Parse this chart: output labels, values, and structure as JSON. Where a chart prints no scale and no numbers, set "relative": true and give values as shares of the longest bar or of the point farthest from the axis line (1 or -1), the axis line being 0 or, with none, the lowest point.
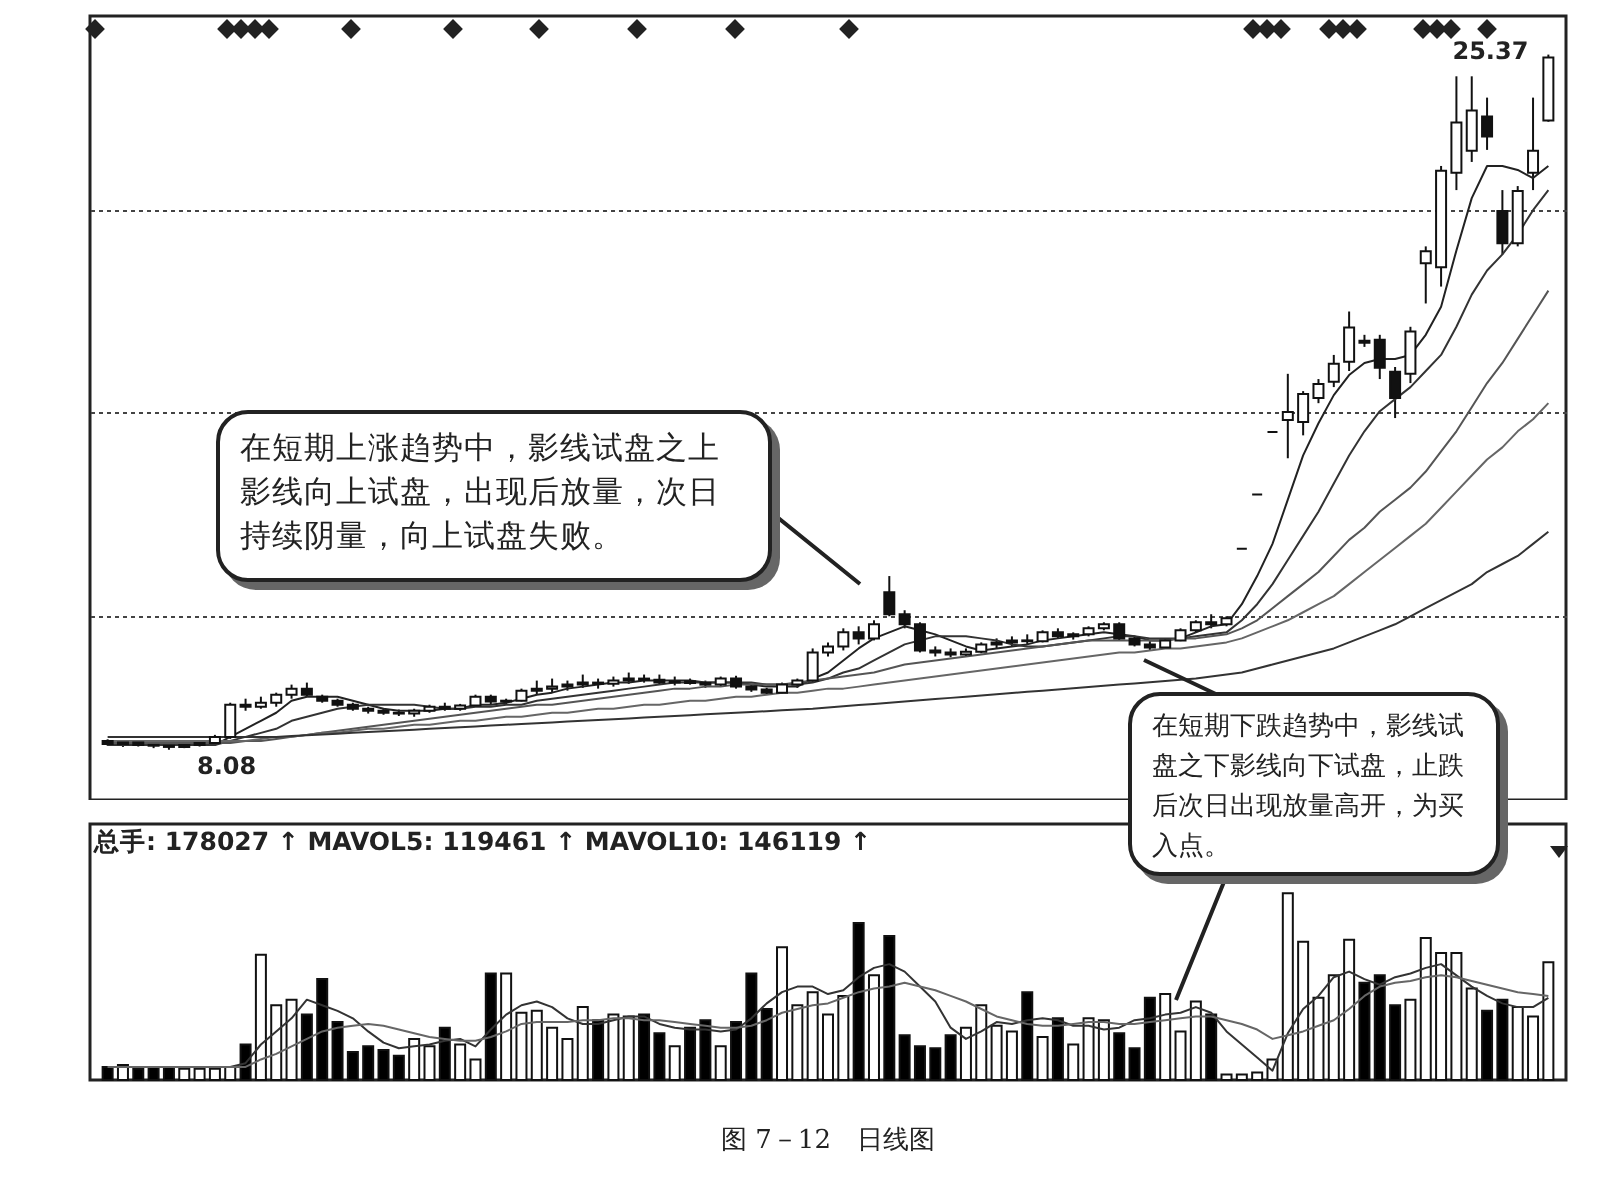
{
  "chart_data": [
    {
      "type": "candlestick",
      "categories": [
        null,
        null,
        null,
        null,
        null,
        null,
        null,
        null,
        null,
        null,
        null,
        null,
        null,
        null,
        null,
        null,
        null,
        null,
        null,
        null,
        null,
        null,
        null,
        null,
        null,
        null,
        null,
        null,
        null,
        null,
        null,
        null,
        null,
        null,
        null,
        null,
        null,
        null,
        null,
        null,
        null,
        null,
        null,
        null,
        null,
        null,
        null,
        null,
        null,
        null,
        null,
        null,
        null,
        null,
        null,
        null,
        null,
        null,
        null,
        null,
        null,
        null,
        null,
        null,
        null,
        null,
        null,
        null,
        null,
        null,
        null,
        null,
        null,
        null,
        null,
        null,
        null,
        null,
        null,
        null,
        null,
        null,
        null,
        null,
        null,
        null,
        null,
        null,
        null,
        null,
        null,
        null,
        null,
        null,
        null
      ],
      "ohlc": [
        [
          8.3,
          8.34,
          8.18,
          8.22
        ],
        [
          8.22,
          8.3,
          8.15,
          8.26
        ],
        [
          8.26,
          8.28,
          8.16,
          8.2
        ],
        [
          8.2,
          8.25,
          8.12,
          8.18
        ],
        [
          8.18,
          8.22,
          8.08,
          8.15
        ],
        [
          8.15,
          8.24,
          8.12,
          8.2
        ],
        [
          8.2,
          8.3,
          8.16,
          8.25
        ],
        [
          8.25,
          8.45,
          8.2,
          8.4
        ],
        [
          8.4,
          9.25,
          8.35,
          9.2
        ],
        [
          9.2,
          9.35,
          9.05,
          9.15
        ],
        [
          9.15,
          9.4,
          9.1,
          9.25
        ],
        [
          9.25,
          9.5,
          9.15,
          9.45
        ],
        [
          9.45,
          9.7,
          9.35,
          9.6
        ],
        [
          9.6,
          9.75,
          9.4,
          9.45
        ],
        [
          9.4,
          9.45,
          9.25,
          9.3
        ],
        [
          9.3,
          9.35,
          9.15,
          9.2
        ],
        [
          9.2,
          9.25,
          9.05,
          9.1
        ],
        [
          9.1,
          9.15,
          8.98,
          9.05
        ],
        [
          9.05,
          9.12,
          8.95,
          9.0
        ],
        [
          9.0,
          9.08,
          8.92,
          8.98
        ],
        [
          8.98,
          9.1,
          8.9,
          9.05
        ],
        [
          9.05,
          9.2,
          9.0,
          9.15
        ],
        [
          9.15,
          9.25,
          9.05,
          9.1
        ],
        [
          9.1,
          9.22,
          9.05,
          9.18
        ],
        [
          9.18,
          9.45,
          9.15,
          9.4
        ],
        [
          9.4,
          9.45,
          9.2,
          9.28
        ],
        [
          9.28,
          9.35,
          9.2,
          9.3
        ],
        [
          9.3,
          9.6,
          9.28,
          9.55
        ],
        [
          9.55,
          9.8,
          9.45,
          9.6
        ],
        [
          9.6,
          9.85,
          9.5,
          9.65
        ],
        [
          9.65,
          9.8,
          9.55,
          9.7
        ],
        [
          9.7,
          9.95,
          9.62,
          9.75
        ],
        [
          9.75,
          9.85,
          9.6,
          9.72
        ],
        [
          9.72,
          9.9,
          9.65,
          9.8
        ],
        [
          9.8,
          10.0,
          9.72,
          9.85
        ],
        [
          9.85,
          9.95,
          9.75,
          9.82
        ],
        [
          9.82,
          9.95,
          9.7,
          9.75
        ],
        [
          9.75,
          9.9,
          9.68,
          9.78
        ],
        [
          9.78,
          9.85,
          9.7,
          9.74
        ],
        [
          9.74,
          9.8,
          9.62,
          9.7
        ],
        [
          9.7,
          9.9,
          9.65,
          9.85
        ],
        [
          9.85,
          9.92,
          9.6,
          9.65
        ],
        [
          9.65,
          9.7,
          9.52,
          9.58
        ],
        [
          9.58,
          9.62,
          9.45,
          9.5
        ],
        [
          9.5,
          9.75,
          9.48,
          9.7
        ],
        [
          9.7,
          9.85,
          9.62,
          9.8
        ],
        [
          9.8,
          10.6,
          9.75,
          10.5
        ],
        [
          10.5,
          10.75,
          10.4,
          10.65
        ],
        [
          10.65,
          11.1,
          10.55,
          11.0
        ],
        [
          11.0,
          11.15,
          10.7,
          10.85
        ],
        [
          10.85,
          11.3,
          10.8,
          11.2
        ],
        [
          12.0,
          12.4,
          11.4,
          11.45
        ],
        [
          11.45,
          11.55,
          11.1,
          11.2
        ],
        [
          11.2,
          11.25,
          10.5,
          10.55
        ],
        [
          10.55,
          10.65,
          10.4,
          10.5
        ],
        [
          10.5,
          10.6,
          10.38,
          10.45
        ],
        [
          10.45,
          10.6,
          10.4,
          10.52
        ],
        [
          10.52,
          10.75,
          10.48,
          10.7
        ],
        [
          10.7,
          10.85,
          10.6,
          10.75
        ],
        [
          10.75,
          10.9,
          10.65,
          10.8
        ],
        [
          10.8,
          10.95,
          10.7,
          10.78
        ],
        [
          10.78,
          11.05,
          10.75,
          11.0
        ],
        [
          11.0,
          11.1,
          10.85,
          10.9
        ],
        [
          10.9,
          11.0,
          10.82,
          10.95
        ],
        [
          10.95,
          11.15,
          10.9,
          11.1
        ],
        [
          11.1,
          11.25,
          11.05,
          11.2
        ],
        [
          11.2,
          11.25,
          10.8,
          10.85
        ],
        [
          10.85,
          10.9,
          10.65,
          10.7
        ],
        [
          10.7,
          10.78,
          10.55,
          10.62
        ],
        [
          10.62,
          10.85,
          10.6,
          10.8
        ],
        [
          10.8,
          11.1,
          10.78,
          11.05
        ],
        [
          11.05,
          11.3,
          11.0,
          11.25
        ],
        [
          11.25,
          11.45,
          11.1,
          11.2
        ],
        [
          11.2,
          11.4,
          11.15,
          11.35
        ],
        [
          13.08,
          13.08,
          13.08,
          13.08
        ],
        [
          14.43,
          14.43,
          14.43,
          14.43
        ],
        [
          15.98,
          15.98,
          15.98,
          15.98
        ],
        [
          16.28,
          17.43,
          15.33,
          16.48
        ],
        [
          16.23,
          17.0,
          15.9,
          16.93
        ],
        [
          16.83,
          17.3,
          16.7,
          17.18
        ],
        [
          17.23,
          17.9,
          17.1,
          17.68
        ],
        [
          17.73,
          18.98,
          17.5,
          18.58
        ],
        [
          18.25,
          18.4,
          18.1,
          18.2
        ],
        [
          18.28,
          18.4,
          17.3,
          17.58
        ],
        [
          17.48,
          17.6,
          16.33,
          16.83
        ],
        [
          17.43,
          18.6,
          17.2,
          18.48
        ],
        [
          20.18,
          20.6,
          19.18,
          20.48
        ],
        [
          20.08,
          22.6,
          19.6,
          22.48
        ],
        [
          22.43,
          24.83,
          22.0,
          23.68
        ],
        [
          22.98,
          24.83,
          22.7,
          23.98
        ],
        [
          23.83,
          24.3,
          23.0,
          23.33
        ],
        [
          21.48,
          22.0,
          20.4,
          20.68
        ],
        [
          20.68,
          22.1,
          20.6,
          21.98
        ],
        [
          22.43,
          24.3,
          22.0,
          22.98
        ],
        [
          23.73,
          25.37,
          23.7,
          25.3
        ]
      ],
      "series": [
        {
          "type": "line",
          "color": "#222222",
          "values": [
            8.2,
            8.2,
            8.2,
            8.2,
            8.2,
            8.2,
            8.2,
            8.2,
            8.4,
            8.6,
            8.8,
            9.0,
            9.3,
            9.4,
            9.4,
            9.4,
            9.3,
            9.2,
            9.1,
            9.05,
            9.05,
            9.05,
            9.1,
            9.1,
            9.2,
            9.2,
            9.25,
            9.35,
            9.45,
            9.5,
            9.6,
            9.65,
            9.7,
            9.75,
            9.75,
            9.8,
            9.8,
            9.8,
            9.8,
            9.75,
            9.75,
            9.75,
            9.7,
            9.65,
            9.65,
            9.65,
            9.85,
            10.0,
            10.3,
            10.6,
            10.85,
            11.0,
            11.15,
            11.05,
            10.95,
            10.8,
            10.65,
            10.55,
            10.6,
            10.65,
            10.7,
            10.8,
            10.85,
            10.9,
            10.95,
            11.0,
            10.95,
            10.9,
            10.8,
            10.8,
            10.85,
            11.0,
            11.15,
            11.2,
            11.7,
            12.4,
            13.2,
            14.3,
            15.4,
            16.2,
            16.9,
            17.4,
            17.7,
            17.8,
            17.8,
            17.9,
            18.4,
            19.1,
            20.5,
            21.8,
            22.6,
            22.6,
            22.5,
            22.3,
            22.6
          ]
        },
        {
          "type": "line",
          "color": "#333333",
          "values": [
            8.2,
            8.2,
            8.2,
            8.2,
            8.2,
            8.2,
            8.2,
            8.2,
            8.3,
            8.4,
            8.5,
            8.6,
            8.8,
            8.9,
            9.0,
            9.1,
            9.15,
            9.2,
            9.2,
            9.2,
            9.2,
            9.15,
            9.1,
            9.1,
            9.15,
            9.15,
            9.2,
            9.2,
            9.3,
            9.35,
            9.4,
            9.45,
            9.5,
            9.55,
            9.6,
            9.65,
            9.7,
            9.75,
            9.75,
            9.75,
            9.75,
            9.75,
            9.75,
            9.7,
            9.7,
            9.7,
            9.75,
            9.85,
            10.0,
            10.1,
            10.3,
            10.5,
            10.7,
            10.8,
            10.9,
            10.9,
            10.9,
            10.85,
            10.8,
            10.7,
            10.65,
            10.65,
            10.7,
            10.75,
            10.8,
            10.85,
            10.9,
            10.9,
            10.85,
            10.85,
            10.85,
            10.9,
            10.95,
            11.0,
            11.3,
            11.7,
            12.2,
            12.8,
            13.4,
            14.0,
            14.7,
            15.4,
            16.0,
            16.5,
            16.8,
            17.1,
            17.5,
            17.9,
            18.6,
            19.4,
            20.0,
            20.4,
            20.9,
            21.5,
            22.0
          ]
        },
        {
          "type": "line",
          "color": "#555555",
          "values": [
            8.25,
            8.25,
            8.25,
            8.25,
            8.25,
            8.25,
            8.25,
            8.25,
            8.25,
            8.3,
            8.3,
            8.35,
            8.4,
            8.45,
            8.5,
            8.55,
            8.6,
            8.65,
            8.7,
            8.75,
            8.8,
            8.85,
            8.9,
            8.95,
            9.0,
            9.05,
            9.1,
            9.15,
            9.2,
            9.2,
            9.25,
            9.3,
            9.35,
            9.4,
            9.45,
            9.5,
            9.55,
            9.6,
            9.6,
            9.65,
            9.65,
            9.7,
            9.7,
            9.7,
            9.7,
            9.75,
            9.8,
            9.85,
            9.9,
            9.95,
            10.0,
            10.1,
            10.2,
            10.25,
            10.3,
            10.35,
            10.4,
            10.45,
            10.5,
            10.55,
            10.6,
            10.65,
            10.7,
            10.75,
            10.8,
            10.8,
            10.8,
            10.8,
            10.8,
            10.8,
            10.85,
            10.85,
            10.9,
            10.95,
            11.1,
            11.3,
            11.6,
            11.9,
            12.2,
            12.5,
            12.9,
            13.3,
            13.6,
            14.0,
            14.3,
            14.6,
            15.0,
            15.5,
            16.0,
            16.6,
            17.2,
            17.7,
            18.3,
            18.9,
            19.5
          ]
        },
        {
          "type": "line",
          "color": "#666666",
          "values": [
            8.3,
            8.3,
            8.3,
            8.3,
            8.3,
            8.3,
            8.3,
            8.3,
            8.3,
            8.3,
            8.35,
            8.4,
            8.4,
            8.45,
            8.5,
            8.5,
            8.55,
            8.6,
            8.6,
            8.65,
            8.7,
            8.7,
            8.75,
            8.8,
            8.8,
            8.85,
            8.9,
            8.9,
            8.95,
            9.0,
            9.0,
            9.05,
            9.1,
            9.1,
            9.15,
            9.2,
            9.2,
            9.25,
            9.3,
            9.3,
            9.35,
            9.4,
            9.4,
            9.45,
            9.5,
            9.5,
            9.55,
            9.6,
            9.6,
            9.65,
            9.7,
            9.75,
            9.8,
            9.85,
            9.9,
            9.95,
            10.0,
            10.05,
            10.1,
            10.15,
            10.2,
            10.25,
            10.3,
            10.35,
            10.4,
            10.45,
            10.5,
            10.5,
            10.55,
            10.6,
            10.6,
            10.65,
            10.7,
            10.75,
            10.85,
            11.0,
            11.15,
            11.3,
            11.5,
            11.7,
            11.9,
            12.2,
            12.5,
            12.8,
            13.1,
            13.4,
            13.7,
            14.1,
            14.5,
            14.9,
            15.3,
            15.6,
            16.0,
            16.3,
            16.7
          ]
        },
        {
          "type": "line",
          "color": "#333333",
          "values": [
            8.4,
            8.4,
            8.4,
            8.4,
            8.4,
            8.4,
            8.4,
            8.4,
            8.4,
            8.4,
            8.4,
            8.4,
            8.42,
            8.44,
            8.46,
            8.48,
            8.5,
            8.52,
            8.54,
            8.56,
            8.58,
            8.6,
            8.62,
            8.64,
            8.66,
            8.68,
            8.7,
            8.72,
            8.74,
            8.76,
            8.78,
            8.8,
            8.82,
            8.84,
            8.86,
            8.88,
            8.9,
            8.92,
            8.94,
            8.96,
            8.98,
            9.0,
            9.02,
            9.04,
            9.06,
            9.08,
            9.1,
            9.13,
            9.16,
            9.19,
            9.22,
            9.25,
            9.28,
            9.31,
            9.34,
            9.37,
            9.4,
            9.43,
            9.46,
            9.49,
            9.52,
            9.55,
            9.58,
            9.61,
            9.64,
            9.67,
            9.7,
            9.73,
            9.76,
            9.79,
            9.82,
            9.85,
            9.9,
            9.95,
            10.0,
            10.1,
            10.2,
            10.3,
            10.4,
            10.5,
            10.6,
            10.75,
            10.9,
            11.05,
            11.2,
            11.4,
            11.6,
            11.8,
            12.0,
            12.2,
            12.5,
            12.7,
            12.9,
            13.2,
            13.5
          ]
        }
      ],
      "ylim": [
        6.83,
        26.33
      ],
      "yticks": [
        {
          "value": 11.4,
          "label": null
        },
        {
          "value": 16.5,
          "label": null
        },
        {
          "value": 21.5,
          "label": null
        }
      ],
      "grid": "y",
      "annotations": [
        "25.37",
        "8.08",
        "在短期上涨趋势中，影线试盘之上影线向上试盘，出现后放量，次日持续阴量，向上试盘失败。",
        "在短期下跌趋势中，影线试盘之下影线向下试盘，止跌后次日出现放量高开，为买入点。"
      ]
    },
    {
      "type": "bar",
      "relative": true,
      "title": "图 7－12　日线图",
      "categories": [
        null,
        null,
        null,
        null,
        null,
        null,
        null,
        null,
        null,
        null,
        null,
        null,
        null,
        null,
        null,
        null,
        null,
        null,
        null,
        null,
        null,
        null,
        null,
        null,
        null,
        null,
        null,
        null,
        null,
        null,
        null,
        null,
        null,
        null,
        null,
        null,
        null,
        null,
        null,
        null,
        null,
        null,
        null,
        null,
        null,
        null,
        null,
        null,
        null,
        null,
        null,
        null,
        null,
        null,
        null,
        null,
        null,
        null,
        null,
        null,
        null,
        null,
        null,
        null,
        null,
        null,
        null,
        null,
        null,
        null,
        null,
        null,
        null,
        null,
        null,
        null,
        null,
        null,
        null,
        null,
        null,
        null,
        null,
        null,
        null,
        null,
        null,
        null,
        null,
        null,
        null,
        null,
        null,
        null,
        null
      ],
      "values": [
        0.07,
        0.08,
        0.06,
        0.07,
        0.07,
        0.06,
        0.06,
        0.06,
        0.07,
        0.19,
        0.67,
        0.4,
        0.43,
        0.35,
        0.54,
        0.31,
        0.15,
        0.18,
        0.16,
        0.13,
        0.22,
        0.18,
        0.28,
        0.19,
        0.11,
        0.57,
        0.57,
        0.36,
        0.37,
        0.28,
        0.22,
        0.39,
        0.32,
        0.35,
        0.34,
        0.35,
        0.25,
        0.18,
        0.28,
        0.32,
        0.18,
        0.31,
        0.57,
        0.38,
        0.71,
        0.4,
        0.47,
        0.35,
        0.45,
        0.84,
        0.56,
        0.77,
        0.24,
        0.18,
        0.17,
        0.24,
        0.28,
        0.4,
        0.29,
        0.26,
        0.47,
        0.23,
        0.33,
        0.19,
        0.33,
        0.32,
        0.25,
        0.17,
        0.44,
        0.46,
        0.26,
        0.42,
        0.35,
        0.03,
        0.03,
        0.04,
        0.11,
        1,
        0.74,
        0.44,
        0.56,
        0.75,
        0.52,
        0.56,
        0.4,
        0.43,
        0.76,
        0.68,
        0.68,
        0.49,
        0.37,
        0.43,
        0.39,
        0.34,
        0.63
      ],
      "colors": [
        "#000000",
        "#ffffff",
        "#000000",
        "#000000",
        "#000000",
        "#ffffff",
        "#ffffff",
        "#ffffff",
        "#ffffff",
        "#000000",
        "#ffffff",
        "#ffffff",
        "#ffffff",
        "#000000",
        "#000000",
        "#000000",
        "#000000",
        "#000000",
        "#000000",
        "#000000",
        "#ffffff",
        "#ffffff",
        "#000000",
        "#ffffff",
        "#ffffff",
        "#000000",
        "#ffffff",
        "#ffffff",
        "#ffffff",
        "#ffffff",
        "#ffffff",
        "#ffffff",
        "#000000",
        "#ffffff",
        "#ffffff",
        "#000000",
        "#000000",
        "#ffffff",
        "#000000",
        "#000000",
        "#ffffff",
        "#000000",
        "#000000",
        "#000000",
        "#ffffff",
        "#ffffff",
        "#ffffff",
        "#ffffff",
        "#ffffff",
        "#000000",
        "#ffffff",
        "#000000",
        "#000000",
        "#000000",
        "#000000",
        "#000000",
        "#ffffff",
        "#ffffff",
        "#ffffff",
        "#ffffff",
        "#000000",
        "#ffffff",
        "#000000",
        "#ffffff",
        "#ffffff",
        "#ffffff",
        "#000000",
        "#000000",
        "#000000",
        "#ffffff",
        "#ffffff",
        "#ffffff",
        "#000000",
        "#ffffff",
        "#ffffff",
        "#ffffff",
        "#ffffff",
        "#ffffff",
        "#ffffff",
        "#ffffff",
        "#ffffff",
        "#ffffff",
        "#000000",
        "#000000",
        "#000000",
        "#ffffff",
        "#ffffff",
        "#ffffff",
        "#ffffff",
        "#ffffff",
        "#000000",
        "#000000",
        "#ffffff",
        "#ffffff",
        "#ffffff"
      ],
      "series": [
        {
          "type": "line",
          "color": "#333333",
          "values": [
            0.07,
            0.07,
            0.07,
            0.07,
            0.07,
            0.07,
            0.07,
            0.07,
            0.07,
            0.09,
            0.19,
            0.26,
            0.33,
            0.43,
            0.4,
            0.37,
            0.33,
            0.26,
            0.2,
            0.17,
            0.18,
            0.19,
            0.21,
            0.22,
            0.18,
            0.27,
            0.35,
            0.4,
            0.42,
            0.39,
            0.33,
            0.3,
            0.3,
            0.32,
            0.34,
            0.34,
            0.3,
            0.28,
            0.27,
            0.27,
            0.26,
            0.27,
            0.33,
            0.41,
            0.47,
            0.5,
            0.5,
            0.46,
            0.48,
            0.55,
            0.6,
            0.62,
            0.58,
            0.5,
            0.42,
            0.28,
            0.22,
            0.26,
            0.31,
            0.3,
            0.32,
            0.33,
            0.32,
            0.29,
            0.29,
            0.27,
            0.28,
            0.32,
            0.33,
            0.35,
            0.36,
            0.39,
            0.36,
            0.26,
            0.19,
            0.12,
            0.05,
            0.25,
            0.38,
            0.45,
            0.55,
            0.58,
            0.54,
            0.51,
            0.55,
            0.57,
            0.6,
            0.62,
            0.56,
            0.5,
            0.45,
            0.41,
            0.39,
            0.39,
            0.44
          ]
        },
        {
          "type": "line",
          "color": "#666666",
          "values": [
            0.07,
            0.07,
            0.07,
            0.07,
            0.07,
            0.07,
            0.07,
            0.07,
            0.07,
            0.07,
            0.11,
            0.14,
            0.18,
            0.22,
            0.26,
            0.28,
            0.29,
            0.3,
            0.29,
            0.27,
            0.25,
            0.23,
            0.22,
            0.21,
            0.21,
            0.23,
            0.26,
            0.3,
            0.31,
            0.31,
            0.31,
            0.32,
            0.32,
            0.33,
            0.33,
            0.32,
            0.32,
            0.31,
            0.3,
            0.29,
            0.28,
            0.28,
            0.29,
            0.32,
            0.36,
            0.38,
            0.4,
            0.41,
            0.44,
            0.47,
            0.49,
            0.5,
            0.52,
            0.5,
            0.48,
            0.45,
            0.42,
            0.38,
            0.34,
            0.32,
            0.3,
            0.29,
            0.29,
            0.3,
            0.31,
            0.31,
            0.3,
            0.3,
            0.31,
            0.32,
            0.33,
            0.34,
            0.34,
            0.32,
            0.3,
            0.27,
            0.22,
            0.24,
            0.26,
            0.29,
            0.32,
            0.38,
            0.45,
            0.5,
            0.52,
            0.53,
            0.55,
            0.56,
            0.55,
            0.53,
            0.51,
            0.49,
            0.47,
            0.46,
            0.45
          ]
        }
      ],
      "annotations": [
        "总手: 178027 ↑  MAVOL5: 119461 ↑  MAVOL10: 146119 ↑"
      ]
    }
  ]
}
